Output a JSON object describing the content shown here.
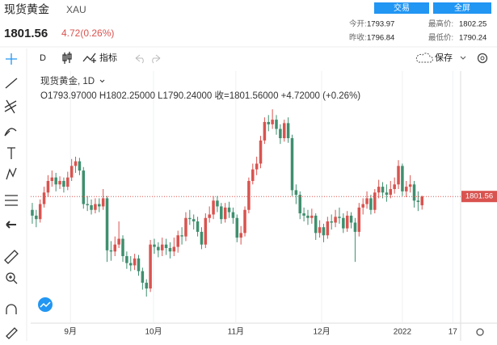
{
  "header": {
    "title": "现货黄金",
    "symbol": "XAU",
    "price": 1801.56,
    "change": "4.72(0.26%)",
    "buttons": [
      "交易",
      "全屏"
    ],
    "stats": [
      {
        "label": "今开:",
        "value": 1793.97
      },
      {
        "label": "最高价:",
        "value": 1802.25
      },
      {
        "label": "昨收:",
        "value": 1796.84
      },
      {
        "label": "最低价:",
        "value": 1790.24
      }
    ]
  },
  "toolbar": {
    "interval": "D",
    "indicators": "指标",
    "save": "保存"
  },
  "legend": {
    "name": "现货黄金, 1D",
    "ohlc": "O1793.97000 H1802.25000 L1790.24000 收=1801.56000 +4.72000 (+0.26%)"
  },
  "chart_data": {
    "type": "candlestick",
    "up_color": "#d9534f",
    "down_color": "#3f8f6f",
    "last_price": 1801.56,
    "ylim": [
      1692,
      1910
    ],
    "xlim": [
      -0.4,
      108.8
    ],
    "xticks": [
      {
        "value": 9.7,
        "label": "9月"
      },
      {
        "value": 30.8,
        "label": "10月"
      },
      {
        "value": 51.7,
        "label": "11月"
      },
      {
        "value": 73.5,
        "label": "12月"
      },
      {
        "value": 94,
        "label": "2022"
      },
      {
        "value": 106.8,
        "label": "17"
      }
    ],
    "open": [
      1790,
      1785,
      1782,
      1795,
      1805,
      1815,
      1818,
      1812,
      1815,
      1810,
      1818,
      1828,
      1832,
      1824,
      1795,
      1794,
      1790,
      1795,
      1793,
      1800,
      1755,
      1754,
      1760,
      1765,
      1750,
      1744,
      1742,
      1748,
      1737,
      1727,
      1722,
      1760,
      1758,
      1755,
      1760,
      1757,
      1754,
      1758,
      1768,
      1767,
      1783,
      1782,
      1780,
      1771,
      1760,
      1783,
      1786,
      1798,
      1793,
      1782,
      1792,
      1788,
      1783,
      1766,
      1770,
      1790,
      1815,
      1825,
      1830,
      1850,
      1866,
      1864,
      1868,
      1860,
      1852,
      1865,
      1852,
      1807,
      1803,
      1787,
      1785,
      1783,
      1785,
      1770,
      1775,
      1768,
      1780,
      1779,
      1784,
      1783,
      1774,
      1785,
      1779,
      1771,
      1792,
      1795,
      1800,
      1790,
      1805,
      1810,
      1805,
      1803,
      1808,
      1812,
      1828,
      1806,
      1810,
      1812,
      1798,
      1793.97
    ],
    "high": [
      1796,
      1790,
      1799,
      1810,
      1820,
      1824,
      1822,
      1819,
      1818,
      1823,
      1834,
      1836,
      1835,
      1827,
      1802,
      1799,
      1800,
      1800,
      1808,
      1802,
      1763,
      1767,
      1780,
      1768,
      1754,
      1750,
      1752,
      1751,
      1740,
      1730,
      1764,
      1765,
      1762,
      1766,
      1765,
      1762,
      1766,
      1772,
      1775,
      1788,
      1790,
      1786,
      1784,
      1775,
      1787,
      1793,
      1802,
      1802,
      1796,
      1796,
      1797,
      1792,
      1786,
      1776,
      1793,
      1818,
      1830,
      1836,
      1854,
      1870,
      1872,
      1877,
      1872,
      1864,
      1868,
      1870,
      1855,
      1812,
      1806,
      1792,
      1790,
      1791,
      1787,
      1781,
      1778,
      1784,
      1786,
      1790,
      1792,
      1787,
      1789,
      1788,
      1783,
      1796,
      1800,
      1806,
      1803,
      1808,
      1816,
      1814,
      1812,
      1815,
      1818,
      1833,
      1830,
      1815,
      1820,
      1815,
      1806,
      1802.25
    ],
    "low": [
      1778,
      1775,
      1779,
      1792,
      1801,
      1810,
      1806,
      1808,
      1805,
      1807,
      1815,
      1822,
      1820,
      1791,
      1789,
      1786,
      1787,
      1788,
      1790,
      1745,
      1746,
      1750,
      1757,
      1745,
      1739,
      1737,
      1738,
      1733,
      1721,
      1715,
      1719,
      1752,
      1749,
      1750,
      1751,
      1748,
      1750,
      1753,
      1760,
      1763,
      1777,
      1773,
      1767,
      1756,
      1757,
      1779,
      1782,
      1788,
      1778,
      1779,
      1783,
      1778,
      1762,
      1760,
      1767,
      1787,
      1812,
      1820,
      1826,
      1847,
      1858,
      1860,
      1855,
      1847,
      1849,
      1848,
      1802,
      1795,
      1782,
      1780,
      1777,
      1778,
      1764,
      1766,
      1762,
      1765,
      1773,
      1775,
      1778,
      1770,
      1771,
      1774,
      1745,
      1767,
      1786,
      1791,
      1786,
      1787,
      1800,
      1800,
      1797,
      1800,
      1804,
      1808,
      1802,
      1801,
      1805,
      1792,
      1789,
      1790.24
    ],
    "close": [
      1785,
      1782,
      1795,
      1805,
      1815,
      1818,
      1812,
      1815,
      1810,
      1818,
      1828,
      1832,
      1824,
      1795,
      1794,
      1790,
      1795,
      1793,
      1800,
      1755,
      1754,
      1760,
      1765,
      1750,
      1744,
      1742,
      1748,
      1737,
      1727,
      1722,
      1760,
      1758,
      1755,
      1760,
      1757,
      1754,
      1758,
      1768,
      1767,
      1783,
      1782,
      1780,
      1771,
      1760,
      1783,
      1786,
      1798,
      1793,
      1782,
      1792,
      1788,
      1783,
      1766,
      1770,
      1790,
      1815,
      1825,
      1830,
      1850,
      1866,
      1864,
      1868,
      1860,
      1852,
      1865,
      1852,
      1807,
      1803,
      1787,
      1785,
      1783,
      1785,
      1770,
      1775,
      1768,
      1780,
      1779,
      1784,
      1783,
      1774,
      1785,
      1779,
      1771,
      1792,
      1795,
      1800,
      1790,
      1805,
      1810,
      1805,
      1803,
      1808,
      1812,
      1828,
      1806,
      1810,
      1812,
      1798,
      1796.84,
      1801.56
    ]
  }
}
